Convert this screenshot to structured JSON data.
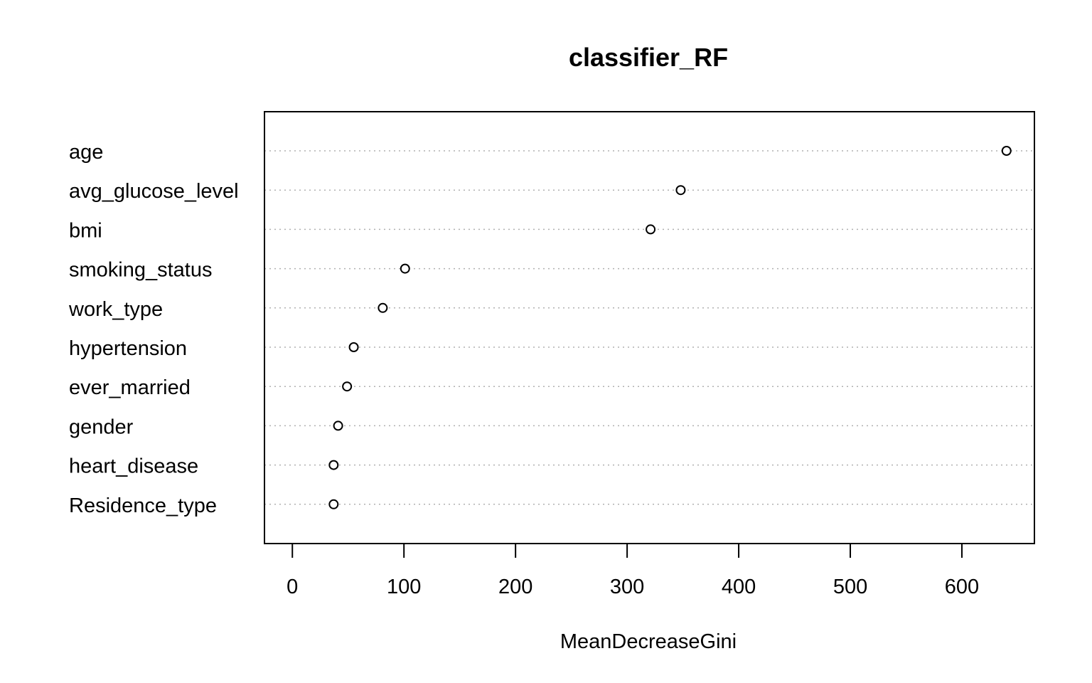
{
  "chart_data": {
    "type": "scatter",
    "title": "classifier_RF",
    "xlabel": "MeanDecreaseGini",
    "ylabel": "",
    "categories": [
      "age",
      "avg_glucose_level",
      "bmi",
      "smoking_status",
      "work_type",
      "hypertension",
      "ever_married",
      "gender",
      "heart_disease",
      "Residence_type"
    ],
    "values": [
      640,
      348,
      321,
      101,
      81,
      55,
      49,
      41,
      37,
      37
    ],
    "xlim": [
      -25,
      665
    ],
    "xticks": [
      0,
      100,
      200,
      300,
      400,
      500,
      600
    ],
    "grid": "dotted horizontal guide lines per category",
    "legend": "none",
    "marker": "open-circle"
  }
}
